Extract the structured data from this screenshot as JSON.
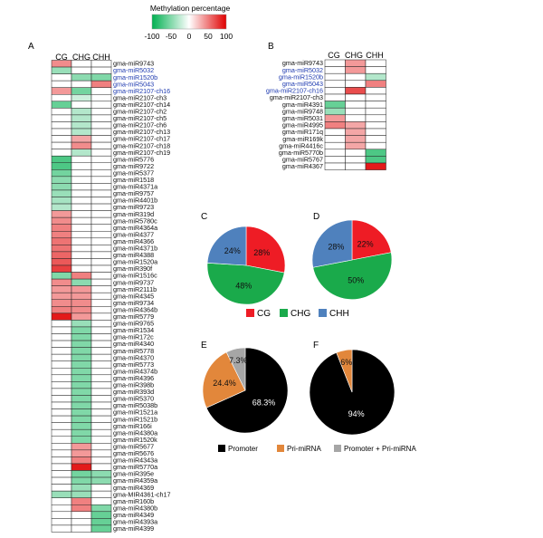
{
  "figure": {
    "colorbar": {
      "title": "Methylation percentage",
      "ticks": [
        "-100",
        "-50",
        "0",
        "50",
        "100"
      ],
      "colors": {
        "negative": "#00b050",
        "neutral": "#ffffff",
        "positive": "#e00000"
      }
    },
    "context_colors": {
      "CG": "#ee1c25",
      "CHG": "#1aaa4b",
      "CHH": "#4f81bd"
    },
    "region_colors": {
      "Promoter": "#000000",
      "Pri-miRNA": "#e2873b",
      "Promoter + Pri-miRNA": "#a6a6a6"
    },
    "highlight_color": "#1f3bb0"
  },
  "chart_data": [
    {
      "panel": "A",
      "type": "heatmap",
      "columns": [
        "CG",
        "CHG",
        "CHH"
      ],
      "scale": [
        -100,
        100
      ],
      "rows": [
        {
          "label": "gma-miR9743",
          "values": [
            45,
            0,
            0
          ],
          "highlight": false
        },
        {
          "label": "gma-miR5032",
          "values": [
            -40,
            0,
            0
          ],
          "highlight": true
        },
        {
          "label": "gma-miR1520b",
          "values": [
            0,
            -45,
            -50
          ],
          "highlight": true
        },
        {
          "label": "gma-miR5043",
          "values": [
            0,
            0,
            50
          ],
          "highlight": true
        },
        {
          "label": "gma-miR2107-ch16",
          "values": [
            40,
            -55,
            0
          ],
          "highlight": true
        },
        {
          "label": "gma-miR2107-ch3",
          "values": [
            0,
            -20,
            0
          ],
          "highlight": false
        },
        {
          "label": "gma-miR2107-ch14",
          "values": [
            -60,
            0,
            0
          ],
          "highlight": false
        },
        {
          "label": "gma-miR2107-ch2",
          "values": [
            0,
            -30,
            0
          ],
          "highlight": false
        },
        {
          "label": "gma-miR2107-ch5",
          "values": [
            0,
            -30,
            0
          ],
          "highlight": false
        },
        {
          "label": "gma-miR2107-ch6",
          "values": [
            0,
            -30,
            0
          ],
          "highlight": false
        },
        {
          "label": "gma-miR2107-ch13",
          "values": [
            0,
            -30,
            0
          ],
          "highlight": false
        },
        {
          "label": "gma-miR2107-ch17",
          "values": [
            0,
            35,
            0
          ],
          "highlight": false
        },
        {
          "label": "gma-miR2107-ch18",
          "values": [
            0,
            45,
            0
          ],
          "highlight": false
        },
        {
          "label": "gma-miR2107-ch19",
          "values": [
            0,
            -30,
            0
          ],
          "highlight": false
        },
        {
          "label": "gma-miR5776",
          "values": [
            -70,
            0,
            0
          ],
          "highlight": false
        },
        {
          "label": "gma-miR9722",
          "values": [
            -70,
            0,
            0
          ],
          "highlight": false
        },
        {
          "label": "gma-miR5377",
          "values": [
            -55,
            0,
            0
          ],
          "highlight": false
        },
        {
          "label": "gma-miR1518",
          "values": [
            -45,
            0,
            0
          ],
          "highlight": false
        },
        {
          "label": "gma-miR4371a",
          "values": [
            -45,
            0,
            0
          ],
          "highlight": false
        },
        {
          "label": "gma-miR9757",
          "values": [
            -40,
            0,
            0
          ],
          "highlight": false
        },
        {
          "label": "gma-miR4401b",
          "values": [
            -35,
            0,
            0
          ],
          "highlight": false
        },
        {
          "label": "gma-miR9723",
          "values": [
            -30,
            0,
            0
          ],
          "highlight": false
        },
        {
          "label": "gma-miR319d",
          "values": [
            40,
            0,
            0
          ],
          "highlight": false
        },
        {
          "label": "gma-miR5780c",
          "values": [
            45,
            0,
            0
          ],
          "highlight": false
        },
        {
          "label": "gma-miR4364a",
          "values": [
            50,
            0,
            0
          ],
          "highlight": false
        },
        {
          "label": "gma-miR4377",
          "values": [
            50,
            0,
            0
          ],
          "highlight": false
        },
        {
          "label": "gma-miR4366",
          "values": [
            55,
            0,
            0
          ],
          "highlight": false
        },
        {
          "label": "gma-miR4371b",
          "values": [
            55,
            0,
            0
          ],
          "highlight": false
        },
        {
          "label": "gma-miR4388",
          "values": [
            60,
            0,
            0
          ],
          "highlight": false
        },
        {
          "label": "gma-miR1520a",
          "values": [
            65,
            0,
            0
          ],
          "highlight": false
        },
        {
          "label": "gma-miR390f",
          "values": [
            75,
            0,
            0
          ],
          "highlight": false
        },
        {
          "label": "gma-miR1516c",
          "values": [
            -50,
            50,
            0
          ],
          "highlight": false
        },
        {
          "label": "gma-miR9737",
          "values": [
            45,
            -45,
            0
          ],
          "highlight": false
        },
        {
          "label": "gma-miR2111b",
          "values": [
            40,
            40,
            0
          ],
          "highlight": false
        },
        {
          "label": "gma-miR4345",
          "values": [
            40,
            40,
            0
          ],
          "highlight": false
        },
        {
          "label": "gma-miR9734",
          "values": [
            45,
            45,
            0
          ],
          "highlight": false
        },
        {
          "label": "gma-miR4364b",
          "values": [
            50,
            45,
            0
          ],
          "highlight": false
        },
        {
          "label": "gma-miR5779",
          "values": [
            90,
            40,
            0
          ],
          "highlight": false
        },
        {
          "label": "gma-miR9765",
          "values": [
            0,
            -40,
            0
          ],
          "highlight": false
        },
        {
          "label": "gma-miR1534",
          "values": [
            0,
            -50,
            0
          ],
          "highlight": false
        },
        {
          "label": "gma-miR172c",
          "values": [
            0,
            -50,
            0
          ],
          "highlight": false
        },
        {
          "label": "gma-miR4340",
          "values": [
            0,
            -50,
            0
          ],
          "highlight": false
        },
        {
          "label": "gma-miR5778",
          "values": [
            0,
            -50,
            0
          ],
          "highlight": false
        },
        {
          "label": "gma-miR4370",
          "values": [
            0,
            -50,
            0
          ],
          "highlight": false
        },
        {
          "label": "gma-miR5773",
          "values": [
            0,
            -50,
            0
          ],
          "highlight": false
        },
        {
          "label": "gma-miR4374b",
          "values": [
            0,
            -50,
            0
          ],
          "highlight": false
        },
        {
          "label": "gma-miR4396",
          "values": [
            0,
            -50,
            0
          ],
          "highlight": false
        },
        {
          "label": "gma-miR398b",
          "values": [
            0,
            -50,
            0
          ],
          "highlight": false
        },
        {
          "label": "gma-miR393d",
          "values": [
            0,
            -50,
            0
          ],
          "highlight": false
        },
        {
          "label": "gma-miR5370",
          "values": [
            0,
            -50,
            0
          ],
          "highlight": false
        },
        {
          "label": "gma-miR5038b",
          "values": [
            0,
            -50,
            0
          ],
          "highlight": false
        },
        {
          "label": "gma-miR1521a",
          "values": [
            0,
            -50,
            0
          ],
          "highlight": false
        },
        {
          "label": "gma-miR1521b",
          "values": [
            0,
            -50,
            0
          ],
          "highlight": false
        },
        {
          "label": "gma-miR166i",
          "values": [
            0,
            -50,
            0
          ],
          "highlight": false
        },
        {
          "label": "gma-miR4380a",
          "values": [
            0,
            -50,
            0
          ],
          "highlight": false
        },
        {
          "label": "gma-miR1520k",
          "values": [
            0,
            -50,
            0
          ],
          "highlight": false
        },
        {
          "label": "gma-miR5677",
          "values": [
            0,
            40,
            0
          ],
          "highlight": false
        },
        {
          "label": "gma-miR5676",
          "values": [
            0,
            40,
            0
          ],
          "highlight": false
        },
        {
          "label": "gma-miR4343a",
          "values": [
            0,
            50,
            0
          ],
          "highlight": false
        },
        {
          "label": "gma-miR5770a",
          "values": [
            0,
            90,
            0
          ],
          "highlight": false
        },
        {
          "label": "gma-miR395e",
          "values": [
            0,
            -55,
            -45
          ],
          "highlight": false
        },
        {
          "label": "gma-miR4359a",
          "values": [
            0,
            -50,
            -45
          ],
          "highlight": false
        },
        {
          "label": "gma-miR4369",
          "values": [
            0,
            -40,
            0
          ],
          "highlight": false
        },
        {
          "label": "gma-MIR4361-ch17",
          "values": [
            -40,
            -40,
            0
          ],
          "highlight": false
        },
        {
          "label": "gma-miR160b",
          "values": [
            0,
            50,
            0
          ],
          "highlight": false
        },
        {
          "label": "gma-miR4380b",
          "values": [
            0,
            50,
            -50
          ],
          "highlight": false
        },
        {
          "label": "gma-miR4349",
          "values": [
            0,
            0,
            -60
          ],
          "highlight": false
        },
        {
          "label": "gma-miR4393a",
          "values": [
            0,
            0,
            -60
          ],
          "highlight": false
        },
        {
          "label": "gma-miR4399",
          "values": [
            0,
            0,
            -60
          ],
          "highlight": false
        }
      ]
    },
    {
      "panel": "B",
      "type": "heatmap",
      "columns": [
        "CG",
        "CHG",
        "CHH"
      ],
      "scale": [
        -100,
        100
      ],
      "rows": [
        {
          "label": "gma-miR9743",
          "values": [
            0,
            40,
            0
          ],
          "highlight": false
        },
        {
          "label": "gma-miR5032",
          "values": [
            0,
            40,
            0
          ],
          "highlight": true
        },
        {
          "label": "gma-miR1520b",
          "values": [
            0,
            0,
            -30
          ],
          "highlight": true
        },
        {
          "label": "gma-miR5043",
          "values": [
            0,
            0,
            50
          ],
          "highlight": true
        },
        {
          "label": "gma-miR2107-ch16",
          "values": [
            0,
            70,
            0
          ],
          "highlight": true
        },
        {
          "label": "gma-miR2107-ch3",
          "values": [
            0,
            0,
            0
          ],
          "highlight": false
        },
        {
          "label": "gma-miR4391",
          "values": [
            -60,
            0,
            0
          ],
          "highlight": false
        },
        {
          "label": "gma-miR9748",
          "values": [
            -40,
            0,
            0
          ],
          "highlight": false
        },
        {
          "label": "gma-miR5031",
          "values": [
            40,
            0,
            0
          ],
          "highlight": false
        },
        {
          "label": "gma-miR4995",
          "values": [
            50,
            35,
            0
          ],
          "highlight": false
        },
        {
          "label": "gma-miR171q",
          "values": [
            0,
            35,
            0
          ],
          "highlight": false
        },
        {
          "label": "gma-miR169k",
          "values": [
            0,
            35,
            0
          ],
          "highlight": false
        },
        {
          "label": "gma-miR4416c",
          "values": [
            0,
            35,
            0
          ],
          "highlight": false
        },
        {
          "label": "gma-miR5770b",
          "values": [
            0,
            0,
            -70
          ],
          "highlight": false
        },
        {
          "label": "gma-miR5767",
          "values": [
            0,
            0,
            -70
          ],
          "highlight": false
        },
        {
          "label": "gma-miR4367",
          "values": [
            0,
            0,
            90
          ],
          "highlight": false
        }
      ]
    },
    {
      "panel": "C",
      "type": "pie",
      "labels": [
        "CG",
        "CHG",
        "CHH"
      ],
      "values": [
        28,
        48,
        24
      ],
      "value_labels": [
        "28%",
        "48%",
        "24%"
      ]
    },
    {
      "panel": "D",
      "type": "pie",
      "labels": [
        "CG",
        "CHG",
        "CHH"
      ],
      "values": [
        22,
        50,
        28
      ],
      "value_labels": [
        "22%",
        "50%",
        "28%"
      ]
    },
    {
      "panel": "E",
      "type": "pie",
      "labels": [
        "Promoter",
        "Pri-miRNA",
        "Promoter + Pri-miRNA"
      ],
      "values": [
        68.3,
        24.4,
        7.3
      ],
      "value_labels": [
        "68.3%",
        "24.4%",
        "7.3%"
      ]
    },
    {
      "panel": "F",
      "type": "pie",
      "labels": [
        "Promoter",
        "Pri-miRNA"
      ],
      "values": [
        94,
        6
      ],
      "value_labels": [
        "94%",
        "6%"
      ]
    }
  ]
}
